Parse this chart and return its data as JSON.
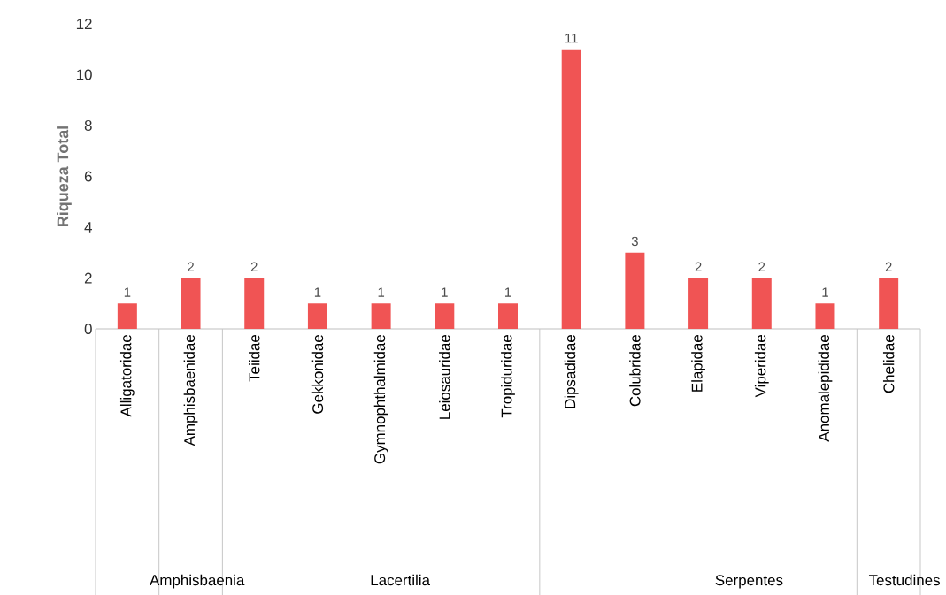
{
  "chart_data": {
    "type": "bar",
    "ylabel": "Riqueza Total",
    "categories": [
      "Alligatoridae",
      "Amphisbaenidae",
      "Teiidae",
      "Gekkonidae",
      "Gymnophthalmidae",
      "Leiosauridae",
      "Tropiduridae",
      "Dipsadidae",
      "Colubridae",
      "Elapidae",
      "Viperidae",
      "Anomalepididae",
      "Chelidae"
    ],
    "values": [
      1,
      2,
      2,
      1,
      1,
      1,
      1,
      11,
      3,
      2,
      2,
      1,
      2
    ],
    "color": "#f05454",
    "ylim": [
      0,
      12
    ],
    "yticks": [
      0,
      2,
      4,
      6,
      8,
      10,
      12
    ],
    "data_labels": true,
    "annotations": [
      "Amphisbaenia",
      "Lacertilia",
      "Serpentes",
      "Testudines"
    ]
  }
}
